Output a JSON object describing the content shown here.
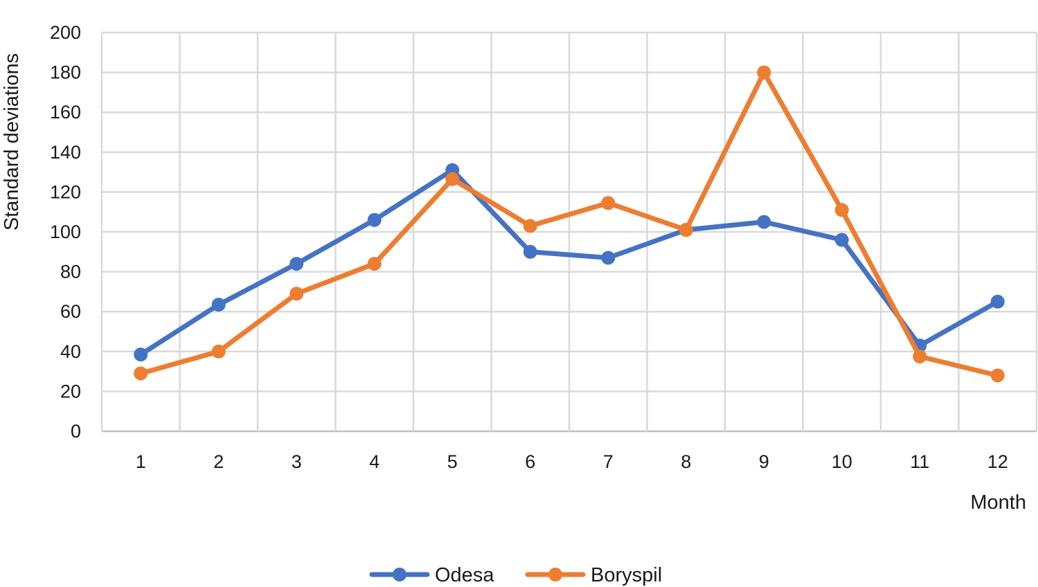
{
  "chart_data": {
    "type": "line",
    "title": "",
    "xlabel": "Month",
    "ylabel": "Standard deviations",
    "categories": [
      "1",
      "2",
      "3",
      "4",
      "5",
      "6",
      "7",
      "8",
      "9",
      "10",
      "11",
      "12"
    ],
    "ylim": [
      0,
      200
    ],
    "yticks": [
      "0",
      "20",
      "40",
      "60",
      "80",
      "100",
      "120",
      "140",
      "160",
      "180",
      "200"
    ],
    "grid": true,
    "legend_position": "bottom",
    "series": [
      {
        "name": "Odesa",
        "color": "#4472C4",
        "values": [
          38.5,
          63.5,
          84,
          106,
          131,
          90,
          87,
          101,
          105,
          96,
          43,
          65
        ]
      },
      {
        "name": "Boryspil",
        "color": "#ED7D31",
        "values": [
          29,
          40,
          69,
          84,
          126.5,
          103,
          114.5,
          101,
          180,
          111,
          37.5,
          28
        ]
      }
    ]
  }
}
